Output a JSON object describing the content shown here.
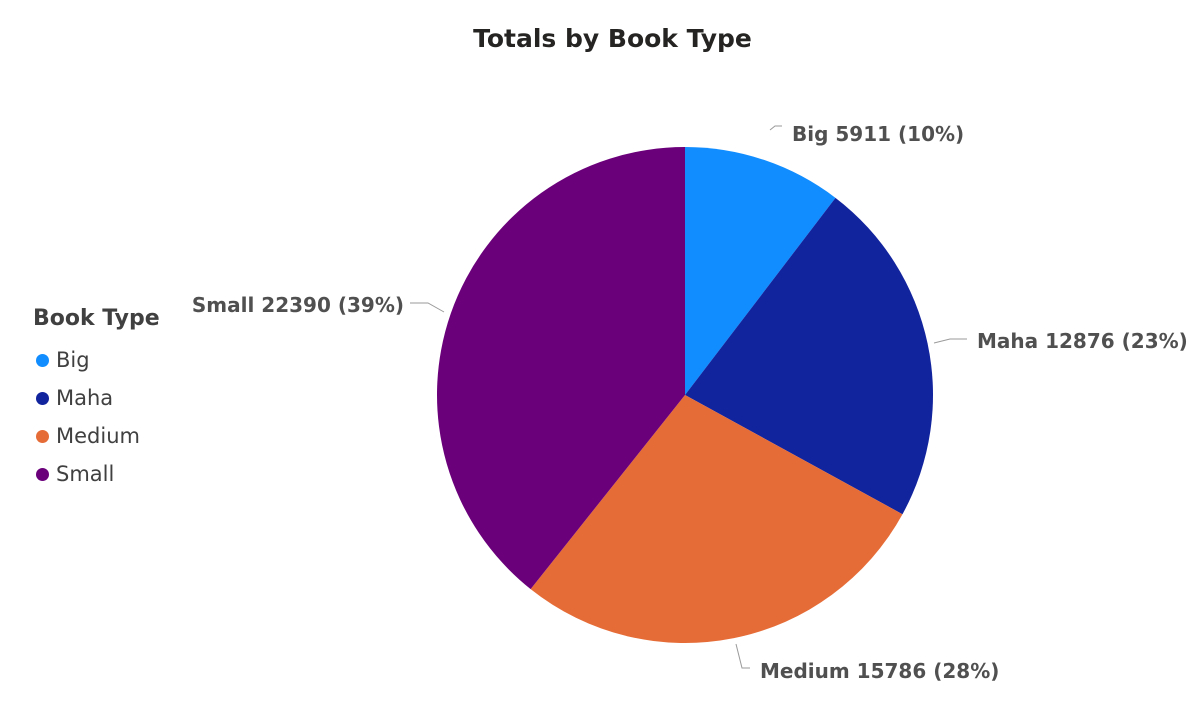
{
  "title": "Totals by Book Type",
  "legend": {
    "title": "Book Type",
    "items": [
      {
        "label": "Big",
        "color": "#118DFF"
      },
      {
        "label": "Maha",
        "color": "#12239E"
      },
      {
        "label": "Medium",
        "color": "#E66C37"
      },
      {
        "label": "Small",
        "color": "#6B007B"
      }
    ]
  },
  "chart_data": {
    "type": "pie",
    "title": "Totals by Book Type",
    "legend_title": "Book Type",
    "legend_position": "left",
    "slices": [
      {
        "category": "Big",
        "value": 5911,
        "percent_label": "10%",
        "data_label": "Big 5911 (10%)",
        "color": "#118DFF"
      },
      {
        "category": "Maha",
        "value": 12876,
        "percent_label": "23%",
        "data_label": "Maha 12876 (23%)",
        "color": "#12239E"
      },
      {
        "category": "Medium",
        "value": 15786,
        "percent_label": "28%",
        "data_label": "Medium 15786 (28%)",
        "color": "#E66C37"
      },
      {
        "category": "Small",
        "value": 22390,
        "percent_label": "39%",
        "data_label": "Small 22390 (39%)",
        "color": "#6B007B"
      }
    ]
  }
}
